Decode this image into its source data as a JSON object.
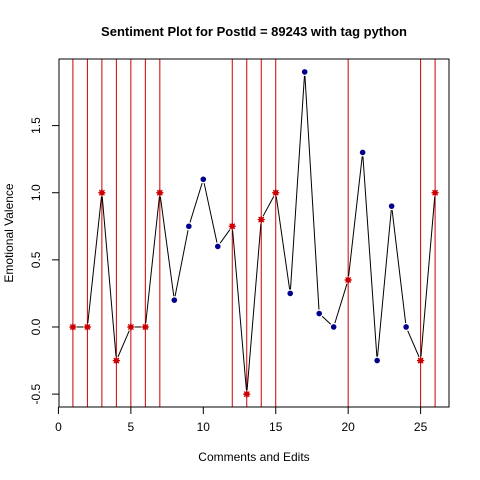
{
  "chart_data": {
    "type": "scatter",
    "title": "Sentiment Plot for PostId =  89243  with tag  python",
    "xlabel": "Comments and Edits",
    "ylabel": "Emotional Valence",
    "xlim": [
      0.04,
      26.96
    ],
    "ylim": [
      -0.596,
      1.996
    ],
    "x_ticks": [
      0,
      5,
      10,
      15,
      20,
      25
    ],
    "x_tick_labels": [
      "0",
      "5",
      "10",
      "15",
      "20",
      "25"
    ],
    "y_ticks": [
      -0.5,
      0.0,
      0.5,
      1.0,
      1.5
    ],
    "y_tick_labels": [
      "-0.5",
      "0.0",
      "0.5",
      "1.0",
      "1.5"
    ],
    "grid": false,
    "x": [
      1,
      2,
      3,
      4,
      5,
      6,
      7,
      8,
      9,
      10,
      11,
      12,
      13,
      14,
      15,
      16,
      17,
      18,
      19,
      20,
      21,
      22,
      23,
      24,
      25,
      26
    ],
    "y": [
      0,
      0,
      1,
      -0.25,
      0,
      0,
      1,
      0.2,
      0.75,
      1.1,
      0.6,
      0.75,
      -0.5,
      0.8,
      1,
      0.25,
      1.9,
      0.1,
      0,
      0.35,
      1.3,
      -0.25,
      0.9,
      0,
      -0.25,
      1
    ],
    "edit_positions": [
      1,
      2,
      3,
      4,
      5,
      6,
      7,
      12,
      13,
      14,
      15,
      20,
      25,
      26
    ],
    "colors": {
      "line": "#000000",
      "comment_point": "#00008b",
      "edit_point": "#cc0000",
      "edit_vline": "#cc0000"
    }
  }
}
